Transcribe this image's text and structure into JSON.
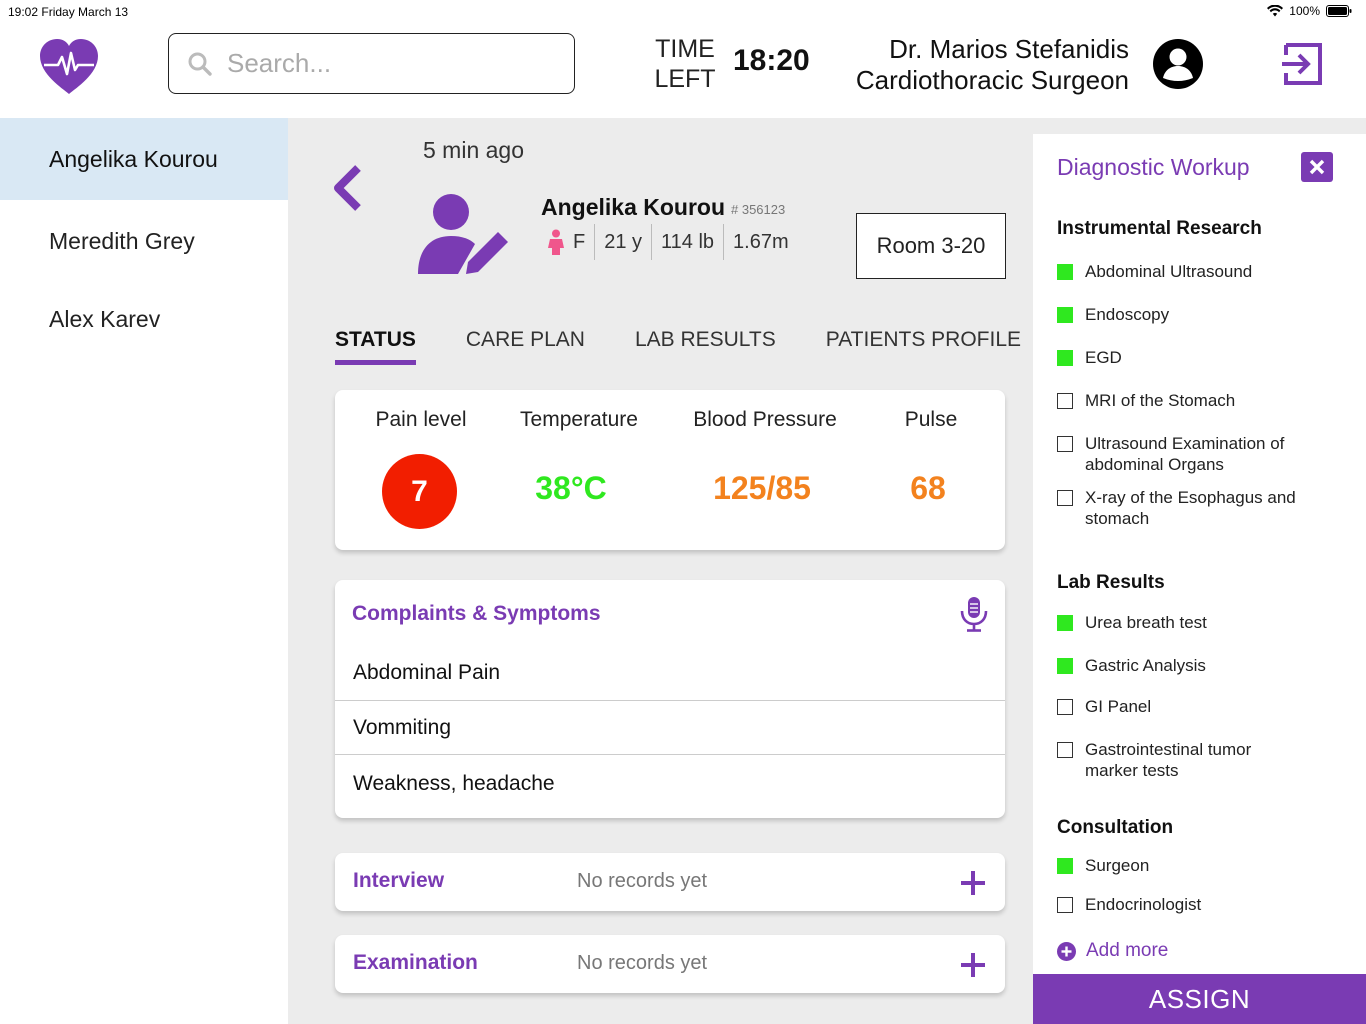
{
  "status_bar": {
    "time_date": "19:02  Friday March 13",
    "battery": "100%"
  },
  "header": {
    "search_placeholder": "Search...",
    "time_left_label_1": "TIME",
    "time_left_label_2": "LEFT",
    "time_left_value": "18:20",
    "doctor_name": "Dr. Marios Stefanidis",
    "doctor_title": "Cardiothoracic Surgeon"
  },
  "sidebar": {
    "patients": [
      {
        "name": "Angelika Kourou",
        "active": true
      },
      {
        "name": "Meredith Grey",
        "active": false
      },
      {
        "name": "Alex Karev",
        "active": false
      }
    ]
  },
  "patient": {
    "updated": "5 min ago",
    "name": "Angelika Kourou",
    "id": "# 356123",
    "sex": "F",
    "age": "21 y",
    "weight": "114 lb",
    "height": "1.67m",
    "room": "Room 3-20"
  },
  "tabs": [
    "STATUS",
    "CARE PLAN",
    "LAB RESULTS",
    "PATIENTS PROFILE"
  ],
  "vitals": {
    "pain_label": "Pain level",
    "pain_value": "7",
    "temp_label": "Temperature",
    "temp_value": "38°C",
    "bp_label": "Blood Pressure",
    "bp_value": "125/85",
    "pulse_label": "Pulse",
    "pulse_value": "68"
  },
  "complaints": {
    "title": "Complaints & Symptoms",
    "items": [
      "Abdominal Pain",
      "Vommiting",
      "Weakness, headache"
    ]
  },
  "interview": {
    "title": "Interview",
    "status": "No records yet"
  },
  "examination": {
    "title": "Examination",
    "status": "No records yet"
  },
  "workup": {
    "title": "Diagnostic Workup",
    "sections": [
      {
        "title": "Instrumental Research",
        "items": [
          {
            "label": "Abdominal Ultrasound",
            "checked": true
          },
          {
            "label": "Endoscopy",
            "checked": true
          },
          {
            "label": "EGD",
            "checked": true
          },
          {
            "label": "MRI of the Stomach",
            "checked": false
          },
          {
            "label": "Ultrasound Examination of abdominal Organs",
            "checked": false
          },
          {
            "label": "X-ray of the Esophagus and stomach",
            "checked": false
          }
        ]
      },
      {
        "title": "Lab Results",
        "items": [
          {
            "label": "Urea breath test",
            "checked": true
          },
          {
            "label": "Gastric Analysis",
            "checked": true
          },
          {
            "label": "GI Panel",
            "checked": false
          },
          {
            "label": "Gastrointestinal tumor marker tests",
            "checked": false
          }
        ]
      },
      {
        "title": "Consultation",
        "items": [
          {
            "label": "Surgeon",
            "checked": true
          },
          {
            "label": "Endocrinologist",
            "checked": false
          }
        ]
      }
    ],
    "add_more": "Add more",
    "assign": "ASSIGN"
  },
  "colors": {
    "accent": "#7a3bb3",
    "pain": "#f21e00",
    "temp": "#2fe81f",
    "bp": "#f3821e",
    "pulse": "#f3821e",
    "checked": "#2fe81f"
  }
}
